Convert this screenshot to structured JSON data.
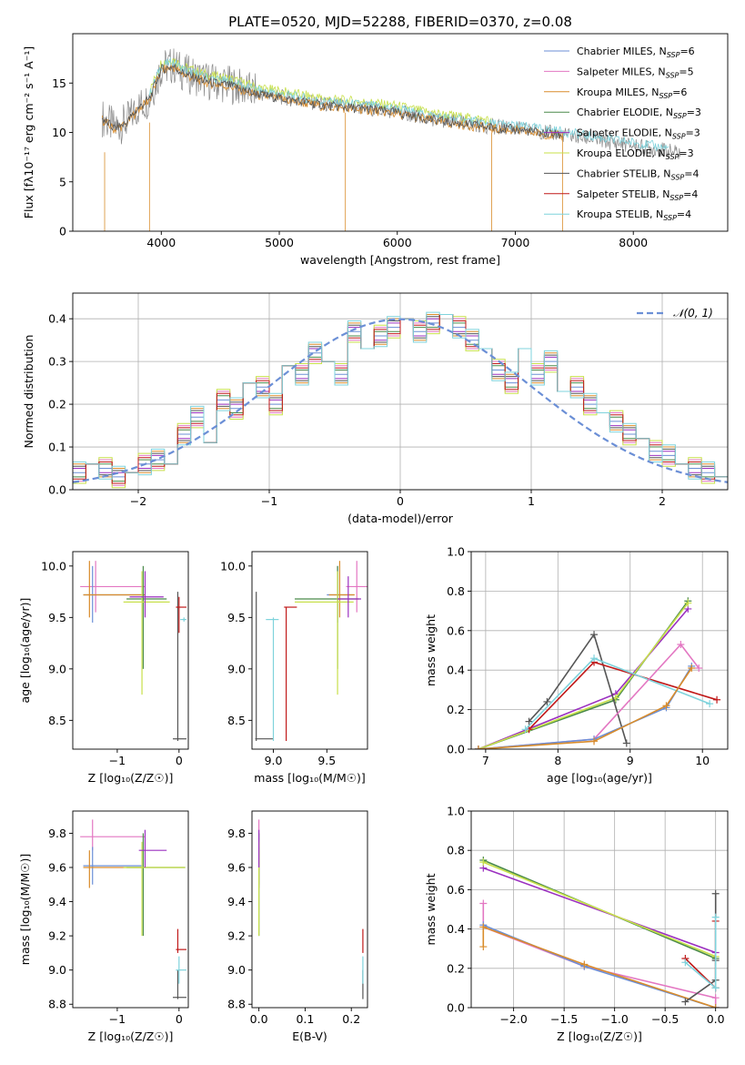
{
  "title": "PLATE=0520, MJD=52288, FIBERID=0370, z=0.08",
  "colors": {
    "chabrier_miles": "#6b8fd6",
    "salpeter_miles": "#e377c2",
    "kroupa_miles": "#d98c2b",
    "chabrier_elodie": "#4a8a4a",
    "salpeter_elodie": "#9b30c0",
    "kroupa_elodie": "#c8e04a",
    "chabrier_stelib": "#555555",
    "salpeter_stelib": "#c01818",
    "kroupa_stelib": "#7fd3dc",
    "data_spectrum": "#888888",
    "gaussian": "#6b8fd6",
    "grid": "#b0b0b0"
  },
  "chart_data": [
    {
      "id": "spectrum",
      "type": "line",
      "xlabel": "wavelength [Angstrom, rest frame]",
      "ylabel": "Flux [fλ10⁻¹⁷ erg cm⁻² s⁻¹ A⁻¹]",
      "xlim": [
        3250,
        8800
      ],
      "ylim": [
        0,
        20
      ],
      "xticks": [
        4000,
        5000,
        6000,
        7000,
        8000
      ],
      "yticks": [
        0,
        5,
        10,
        15
      ],
      "grid": false,
      "legend_position": "right",
      "legend": [
        {
          "label": "Chabrier MILES, N",
          "sub": "SSP",
          "suffix": "=6",
          "color_key": "chabrier_miles"
        },
        {
          "label": "Salpeter MILES, N",
          "sub": "SSP",
          "suffix": "=5",
          "color_key": "salpeter_miles"
        },
        {
          "label": "Kroupa MILES, N",
          "sub": "SSP",
          "suffix": "=6",
          "color_key": "kroupa_miles"
        },
        {
          "label": "Chabrier ELODIE, N",
          "sub": "SSP",
          "suffix": "=3",
          "color_key": "chabrier_elodie"
        },
        {
          "label": "Salpeter ELODIE, N",
          "sub": "SSP",
          "suffix": "=3",
          "color_key": "salpeter_elodie"
        },
        {
          "label": "Kroupa ELODIE, N",
          "sub": "SSP",
          "suffix": "=3",
          "color_key": "kroupa_elodie"
        },
        {
          "label": "Chabrier STELIB, N",
          "sub": "SSP",
          "suffix": "=4",
          "color_key": "chabrier_stelib"
        },
        {
          "label": "Salpeter STELIB, N",
          "sub": "SSP",
          "suffix": "=4",
          "color_key": "salpeter_stelib"
        },
        {
          "label": "Kroupa STELIB, N",
          "sub": "SSP",
          "suffix": "=4",
          "color_key": "kroupa_stelib"
        }
      ],
      "data_curve": {
        "x": [
          3500,
          3600,
          3700,
          3800,
          3900,
          4000,
          4100,
          4200,
          4400,
          4600,
          4800,
          5000,
          5200,
          5400,
          5600,
          5800,
          6000,
          6200,
          6400,
          6600,
          6800,
          7000,
          7200,
          7400,
          7600,
          7800,
          8000,
          8200,
          8400
        ],
        "y": [
          11.5,
          10.5,
          11.0,
          12.5,
          13.5,
          16.5,
          16.8,
          16.0,
          15.2,
          14.8,
          14.0,
          13.6,
          13.2,
          12.8,
          12.6,
          12.4,
          12.1,
          11.6,
          11.2,
          10.9,
          10.6,
          10.4,
          10.1,
          9.8,
          9.4,
          9.0,
          8.7,
          8.3,
          7.9
        ]
      },
      "model_curves": [
        {
          "color_key": "kroupa_elodie",
          "x_range": [
            3900,
            6800
          ],
          "offset": 0.6
        },
        {
          "color_key": "kroupa_stelib",
          "x_range": [
            3900,
            8300
          ],
          "offset": 0.3
        },
        {
          "color_key": "kroupa_miles",
          "x_range": [
            3500,
            7400
          ],
          "offset": -0.2
        },
        {
          "color_key": "chabrier_stelib",
          "x_range": [
            3500,
            7400
          ],
          "offset": -0.1
        }
      ],
      "spikes": [
        {
          "x": 3520,
          "from": 8,
          "to": 0
        },
        {
          "x": 3900,
          "from": 11,
          "to": 0
        },
        {
          "x": 5560,
          "from": 12,
          "to": 0
        },
        {
          "x": 6800,
          "from": 10,
          "to": 0
        },
        {
          "x": 7400,
          "from": 10,
          "to": 0
        }
      ]
    },
    {
      "id": "residuals",
      "type": "line",
      "xlabel": "(data-model)/error",
      "ylabel": "Normed distribution",
      "xlim": [
        -2.5,
        2.5
      ],
      "ylim": [
        0,
        0.46
      ],
      "xticks": [
        -2,
        -1,
        0,
        1,
        2
      ],
      "yticks": [
        0.0,
        0.1,
        0.2,
        0.3,
        0.4
      ],
      "grid": true,
      "legend_position": "top-right",
      "legend": [
        {
          "label": "𝒩(0, 1)",
          "color_key": "gaussian",
          "dashed": true
        }
      ],
      "bin_edges_start": -2.5,
      "bin_width": 0.1,
      "histogram": [
        0.04,
        0.06,
        0.05,
        0.03,
        0.04,
        0.06,
        0.07,
        0.06,
        0.13,
        0.17,
        0.11,
        0.21,
        0.19,
        0.25,
        0.24,
        0.2,
        0.29,
        0.27,
        0.32,
        0.3,
        0.27,
        0.37,
        0.33,
        0.36,
        0.38,
        0.4,
        0.37,
        0.39,
        0.41,
        0.38,
        0.35,
        0.33,
        0.28,
        0.25,
        0.33,
        0.27,
        0.3,
        0.23,
        0.24,
        0.2,
        0.18,
        0.16,
        0.13,
        0.12,
        0.09,
        0.08,
        0.06,
        0.05,
        0.04,
        0.03
      ],
      "histogram_offsets": [
        0.0,
        0.02,
        -0.02,
        0.01,
        -0.01,
        0.025,
        -0.015,
        0.015,
        -0.025
      ]
    },
    {
      "id": "age_vs_z",
      "type": "scatter",
      "xlabel": "Z [log₁₀(Z/Z☉)]",
      "ylabel": "age  [log₁₀(age/yr)]",
      "xlim": [
        -1.72,
        0.15
      ],
      "ylim": [
        8.22,
        10.14
      ],
      "xticks": [
        -1,
        0
      ],
      "yticks": [
        8.5,
        9.0,
        9.5,
        10.0
      ],
      "grid": false,
      "points": [
        {
          "color_key": "salpeter_miles",
          "x": -1.35,
          "y": 9.8,
          "xl": -1.6,
          "xh": -0.55,
          "yl": 9.55,
          "yh": 10.05
        },
        {
          "color_key": "chabrier_miles",
          "x": -1.4,
          "y": 9.72,
          "xl": -1.55,
          "xh": -0.6,
          "yl": 9.45,
          "yh": 10.0
        },
        {
          "color_key": "kroupa_miles",
          "x": -1.45,
          "y": 9.72,
          "xl": -1.55,
          "xh": -0.55,
          "yl": 9.5,
          "yh": 10.05
        },
        {
          "color_key": "chabrier_elodie",
          "x": -0.58,
          "y": 9.68,
          "xl": -0.85,
          "xh": -0.2,
          "yl": 9.0,
          "yh": 10.0
        },
        {
          "color_key": "kroupa_elodie",
          "x": -0.6,
          "y": 9.65,
          "xl": -0.9,
          "xh": -0.15,
          "yl": 8.75,
          "yh": 9.95
        },
        {
          "color_key": "salpeter_elodie",
          "x": -0.55,
          "y": 9.7,
          "xl": -0.8,
          "xh": -0.25,
          "yl": 9.5,
          "yh": 9.95
        },
        {
          "color_key": "chabrier_stelib",
          "x": -0.02,
          "y": 8.32,
          "xl": -0.1,
          "xh": 0.12,
          "yl": 8.3,
          "yh": 9.75
        },
        {
          "color_key": "salpeter_stelib",
          "x": 0.0,
          "y": 9.6,
          "xl": -0.05,
          "xh": 0.12,
          "yl": 9.35,
          "yh": 9.7
        },
        {
          "color_key": "kroupa_stelib",
          "x": 0.08,
          "y": 9.48,
          "xl": 0.02,
          "xh": 0.12,
          "yl": 9.46,
          "yh": 9.5
        }
      ]
    },
    {
      "id": "age_vs_mass",
      "type": "scatter",
      "xlabel": "mass [log₁₀(M/M☉)]",
      "ylabel": "",
      "xlim": [
        8.8,
        9.88
      ],
      "ylim": [
        8.22,
        10.14
      ],
      "xticks": [
        9.0,
        9.5
      ],
      "yticks": [
        8.5,
        9.0,
        9.5,
        10.0
      ],
      "grid": false,
      "points": [
        {
          "color_key": "salpeter_miles",
          "x": 9.78,
          "y": 9.8,
          "xl": 9.68,
          "xh": 9.88,
          "yl": 9.55,
          "yh": 10.05
        },
        {
          "color_key": "chabrier_miles",
          "x": 9.6,
          "y": 9.72,
          "xl": 9.5,
          "xh": 9.75,
          "yl": 9.45,
          "yh": 10.0
        },
        {
          "color_key": "kroupa_miles",
          "x": 9.62,
          "y": 9.72,
          "xl": 9.52,
          "xh": 9.76,
          "yl": 9.5,
          "yh": 10.05
        },
        {
          "color_key": "chabrier_elodie",
          "x": 9.6,
          "y": 9.68,
          "xl": 9.2,
          "xh": 9.8,
          "yl": 9.0,
          "yh": 10.0
        },
        {
          "color_key": "kroupa_elodie",
          "x": 9.6,
          "y": 9.65,
          "xl": 9.2,
          "xh": 9.75,
          "yl": 8.75,
          "yh": 9.95
        },
        {
          "color_key": "salpeter_elodie",
          "x": 9.7,
          "y": 9.68,
          "xl": 9.6,
          "xh": 9.82,
          "yl": 9.5,
          "yh": 9.9
        },
        {
          "color_key": "chabrier_stelib",
          "x": 8.84,
          "y": 8.32,
          "xl": 8.83,
          "xh": 9.0,
          "yl": 8.3,
          "yh": 9.75
        },
        {
          "color_key": "salpeter_stelib",
          "x": 9.12,
          "y": 9.6,
          "xl": 9.1,
          "xh": 9.22,
          "yl": 8.3,
          "yh": 9.6
        },
        {
          "color_key": "kroupa_stelib",
          "x": 9.0,
          "y": 9.48,
          "xl": 8.93,
          "xh": 9.05,
          "yl": 8.3,
          "yh": 9.5
        }
      ]
    },
    {
      "id": "mass_weight_vs_age",
      "type": "line",
      "xlabel": "age  [log₁₀(age/yr)]",
      "ylabel": "mass weight",
      "xlim": [
        6.8,
        10.35
      ],
      "ylim": [
        0,
        1.0
      ],
      "xticks": [
        7,
        8,
        9,
        10
      ],
      "yticks": [
        0.0,
        0.2,
        0.4,
        0.6,
        0.8,
        1.0
      ],
      "grid": true,
      "series": [
        {
          "color_key": "chabrier_elodie",
          "x": [
            6.9,
            8.8,
            9.8
          ],
          "y": [
            0.0,
            0.25,
            0.75
          ]
        },
        {
          "color_key": "salpeter_elodie",
          "x": [
            6.9,
            8.8,
            9.8
          ],
          "y": [
            0.0,
            0.28,
            0.71
          ]
        },
        {
          "color_key": "kroupa_elodie",
          "x": [
            6.9,
            8.8,
            9.8
          ],
          "y": [
            0.0,
            0.26,
            0.74
          ]
        },
        {
          "color_key": "chabrier_stelib",
          "x": [
            7.6,
            7.85,
            8.5,
            8.95
          ],
          "y": [
            0.14,
            0.24,
            0.58,
            0.03
          ]
        },
        {
          "color_key": "salpeter_stelib",
          "x": [
            7.6,
            8.5,
            10.2
          ],
          "y": [
            0.1,
            0.44,
            0.25
          ]
        },
        {
          "color_key": "kroupa_stelib",
          "x": [
            7.55,
            8.5,
            10.1
          ],
          "y": [
            0.1,
            0.46,
            0.23
          ]
        },
        {
          "color_key": "salpeter_miles",
          "x": [
            6.9,
            8.5,
            9.7,
            9.95
          ],
          "y": [
            0.0,
            0.05,
            0.53,
            0.41
          ]
        },
        {
          "color_key": "chabrier_miles",
          "x": [
            6.9,
            8.5,
            9.5,
            9.85
          ],
          "y": [
            0.0,
            0.05,
            0.21,
            0.42
          ]
        },
        {
          "color_key": "kroupa_miles",
          "x": [
            6.9,
            8.5,
            9.5,
            9.85
          ],
          "y": [
            0.0,
            0.04,
            0.22,
            0.41
          ]
        }
      ]
    },
    {
      "id": "mass_vs_z",
      "type": "scatter",
      "xlabel": "Z [log₁₀(Z/Z☉)]",
      "ylabel": "mass [log₁₀(M/M☉)]",
      "xlim": [
        -1.72,
        0.15
      ],
      "ylim": [
        8.78,
        9.93
      ],
      "xticks": [
        -1,
        0
      ],
      "yticks": [
        8.8,
        9.0,
        9.2,
        9.4,
        9.6,
        9.8
      ],
      "grid": false,
      "points": [
        {
          "color_key": "salpeter_miles",
          "x": -1.4,
          "y": 9.78,
          "xl": -1.6,
          "xh": -0.55,
          "yl": 9.7,
          "yh": 9.88
        },
        {
          "color_key": "chabrier_miles",
          "x": -1.4,
          "y": 9.61,
          "xl": -1.55,
          "xh": -0.6,
          "yl": 9.5,
          "yh": 9.72
        },
        {
          "color_key": "kroupa_miles",
          "x": -1.45,
          "y": 9.6,
          "xl": -1.55,
          "xh": -0.55,
          "yl": 9.48,
          "yh": 9.7
        },
        {
          "color_key": "chabrier_elodie",
          "x": -0.58,
          "y": 9.6,
          "xl": -0.85,
          "xh": 0.1,
          "yl": 9.2,
          "yh": 9.8
        },
        {
          "color_key": "kroupa_elodie",
          "x": -0.6,
          "y": 9.6,
          "xl": -0.9,
          "xh": 0.1,
          "yl": 9.2,
          "yh": 9.75
        },
        {
          "color_key": "salpeter_elodie",
          "x": -0.55,
          "y": 9.7,
          "xl": -0.65,
          "xh": -0.2,
          "yl": 9.6,
          "yh": 9.82
        },
        {
          "color_key": "chabrier_stelib",
          "x": -0.02,
          "y": 8.84,
          "xl": -0.1,
          "xh": 0.12,
          "yl": 8.83,
          "yh": 9.0
        },
        {
          "color_key": "salpeter_stelib",
          "x": -0.02,
          "y": 9.12,
          "xl": -0.05,
          "xh": 0.12,
          "yl": 9.1,
          "yh": 9.24
        },
        {
          "color_key": "kroupa_stelib",
          "x": 0.0,
          "y": 9.0,
          "xl": -0.05,
          "xh": 0.12,
          "yl": 8.92,
          "yh": 9.08
        }
      ]
    },
    {
      "id": "mass_vs_ebv",
      "type": "scatter",
      "xlabel": "E(B-V)",
      "ylabel": "",
      "xlim": [
        -0.015,
        0.235
      ],
      "ylim": [
        8.78,
        9.93
      ],
      "xticks": [
        0.0,
        0.1,
        0.2
      ],
      "yticks": [
        8.8,
        9.0,
        9.2,
        9.4,
        9.6,
        9.8
      ],
      "grid": false,
      "points": [
        {
          "color_key": "salpeter_miles",
          "x": 0.0,
          "y": 9.78,
          "xl": 0.0,
          "xh": 0.0,
          "yl": 9.7,
          "yh": 9.88
        },
        {
          "color_key": "chabrier_miles",
          "x": 0.0,
          "y": 9.61,
          "xl": 0.0,
          "xh": 0.0,
          "yl": 9.5,
          "yh": 9.72
        },
        {
          "color_key": "kroupa_miles",
          "x": 0.0,
          "y": 9.6,
          "xl": 0.0,
          "xh": 0.0,
          "yl": 9.48,
          "yh": 9.7
        },
        {
          "color_key": "chabrier_elodie",
          "x": 0.0,
          "y": 9.6,
          "xl": 0.0,
          "xh": 0.0,
          "yl": 9.2,
          "yh": 9.8
        },
        {
          "color_key": "kroupa_elodie",
          "x": 0.0,
          "y": 9.6,
          "xl": 0.0,
          "xh": 0.0,
          "yl": 9.2,
          "yh": 9.75
        },
        {
          "color_key": "salpeter_elodie",
          "x": 0.0,
          "y": 9.7,
          "xl": 0.0,
          "xh": 0.0,
          "yl": 9.6,
          "yh": 9.82
        },
        {
          "color_key": "chabrier_stelib",
          "x": 0.225,
          "y": 8.84,
          "xl": 0.225,
          "xh": 0.225,
          "yl": 8.83,
          "yh": 9.0
        },
        {
          "color_key": "salpeter_stelib",
          "x": 0.225,
          "y": 9.12,
          "xl": 0.225,
          "xh": 0.225,
          "yl": 9.1,
          "yh": 9.24
        },
        {
          "color_key": "kroupa_stelib",
          "x": 0.225,
          "y": 9.0,
          "xl": 0.225,
          "xh": 0.225,
          "yl": 8.92,
          "yh": 9.08
        }
      ]
    },
    {
      "id": "mass_weight_vs_z",
      "type": "line",
      "xlabel": "Z [log₁₀(Z/Z☉)]",
      "ylabel": "mass weight",
      "xlim": [
        -2.42,
        0.12
      ],
      "ylim": [
        0,
        1.0
      ],
      "xticks": [
        -2.0,
        -1.5,
        -1.0,
        -0.5,
        0.0
      ],
      "yticks": [
        0.0,
        0.2,
        0.4,
        0.6,
        0.8,
        1.0
      ],
      "grid": true,
      "series": [
        {
          "color_key": "chabrier_elodie",
          "x": [
            -2.3,
            0.0
          ],
          "y": [
            0.75,
            0.25
          ]
        },
        {
          "color_key": "salpeter_elodie",
          "x": [
            -2.3,
            0.0
          ],
          "y": [
            0.71,
            0.28
          ]
        },
        {
          "color_key": "kroupa_elodie",
          "x": [
            -2.3,
            0.0
          ],
          "y": [
            0.74,
            0.26
          ]
        },
        {
          "color_key": "salpeter_miles",
          "x": [
            -2.3,
            -2.3,
            -1.3,
            0.0,
            0.0
          ],
          "y": [
            0.53,
            0.41,
            0.21,
            0.05,
            0.0
          ]
        },
        {
          "color_key": "chabrier_miles",
          "x": [
            -2.3,
            -1.3,
            0.0
          ],
          "y": [
            0.42,
            0.21,
            0.0
          ]
        },
        {
          "color_key": "kroupa_miles",
          "x": [
            -2.3,
            -2.3,
            -1.3,
            0.0
          ],
          "y": [
            0.31,
            0.41,
            0.22,
            0.0
          ]
        },
        {
          "color_key": "chabrier_stelib",
          "x": [
            -0.3,
            0.0,
            0.0,
            0.0
          ],
          "y": [
            0.03,
            0.14,
            0.24,
            0.58
          ]
        },
        {
          "color_key": "salpeter_stelib",
          "x": [
            -0.3,
            0.0,
            0.0
          ],
          "y": [
            0.25,
            0.1,
            0.44
          ]
        },
        {
          "color_key": "kroupa_stelib",
          "x": [
            -0.3,
            0.0,
            0.0
          ],
          "y": [
            0.23,
            0.1,
            0.46
          ]
        }
      ]
    }
  ]
}
